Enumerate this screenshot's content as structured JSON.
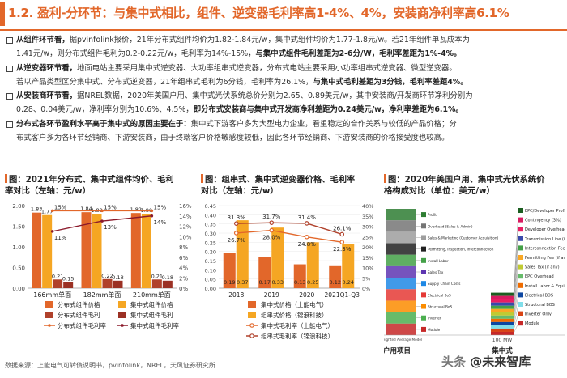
{
  "header": {
    "title": "1.2. 盈利-分环节：与集中式相比，组件、逆变器毛利率高1-4%、4%，安装商净利率高6.1%"
  },
  "bullets": [
    {
      "lead": "从组件环节看，",
      "lines": [
        "据pvinfolink报价，21年分布式组件均价为1.82-1.84元/w，集中式组件均价为1.77-1.8元/w。若21年组件单瓦成本为",
        "1.41元/w，则分布式组件毛利为0.2-0.22元/w，毛利率为14%-15%，"
      ],
      "highlight": "与集中式组件毛利差距为2-6分/W，毛利率差距为1%-4%。"
    },
    {
      "lead": "从逆变器环节看，",
      "lines": [
        "地面电站主要采用集中式逆变器、大功率组串式逆变器，分布式电站主要采用小功率组串式逆变器、微型逆变器。",
        "若以产品类型区分集中式、分布式逆变器，21年组串式毛利为6分钱，毛利率为26.1%，"
      ],
      "highlight": "与集中式毛利差距为3分钱，毛利率差距4%。"
    },
    {
      "lead": "从安装商环节看，",
      "lines": [
        "据NREL数据，2020年美国户用、集中式光伏系统总价分别为2.65、0.89美元/w，其中安装商/开发商环节净利分别为",
        "0.28、0.04美元/w，净利率分别为10.6%、4.5%，"
      ],
      "highlight": "即分布式安装商与集中式开发商净利差距为0.24美元/w，净利率差距为6.1%。"
    },
    {
      "lead": "分布式各环节盈利水平高于集中式的原因主要在于：",
      "lines": [
        "集中式下游客户多为大型电力企业，看重稳定的合作关系与较低的产品价格；分",
        "布式客户多为各环节经销商、下游安装商，由于终端客户价格敏感度较低，因此各环节经销商、下游安装商的价格接受度也较高。"
      ],
      "highlight": ""
    }
  ],
  "chart1": {
    "title_line1": "图：2021年分布式、集中式组件均价、毛利",
    "title_line2": "率对比（左轴：元/w）",
    "chart_data": {
      "type": "bar",
      "categories": [
        "166mm单面",
        "182mm单面",
        "210mm单面"
      ],
      "series": [
        {
          "name": "分布式组件价格",
          "values": [
            1.83,
            1.84,
            1.82
          ],
          "color": "#e2672a"
        },
        {
          "name": "集中式组件价格",
          "values": [
            1.77,
            1.8,
            1.8
          ],
          "color": "#f5a623"
        },
        {
          "name": "分布式组件毛利",
          "values": [
            0.21,
            0.22,
            0.21
          ],
          "color": "#b0412b"
        },
        {
          "name": "集中式组件毛利",
          "values": [
            0.15,
            0.18,
            0.18
          ],
          "color": "#9b3124"
        },
        {
          "name": "分布式组件毛利率",
          "values": [
            15,
            15,
            15
          ],
          "unit": "%",
          "axis": "right",
          "style": "line",
          "color": "#e2672a"
        },
        {
          "name": "集中式组件毛利率",
          "values": [
            11,
            13,
            14
          ],
          "unit": "%",
          "axis": "right",
          "style": "line",
          "color": "#8b1a2b"
        }
      ],
      "y_left": {
        "min": 0,
        "max": 2.0,
        "ticks": [
          "0.00",
          "0.50",
          "1.00",
          "1.50",
          "2.00"
        ]
      },
      "y_right": {
        "min": 0,
        "max": 16,
        "ticks": [
          "0%",
          "2%",
          "4%",
          "6%",
          "8%",
          "10%",
          "12%",
          "14%",
          "16%"
        ]
      },
      "bar_labels": [
        [
          "1.83",
          "1.77",
          "0.21",
          "0.15"
        ],
        [
          "1.84",
          "1.80",
          "0.22",
          "0.18"
        ],
        [
          "1.82",
          "1.80",
          "0.21",
          "0.18"
        ]
      ],
      "line_labels": {
        "分布式组件毛利率": [
          "15%",
          "15%",
          "15%"
        ],
        "集中式组件毛利率": [
          "11%",
          "13%",
          "14%"
        ]
      },
      "legend_placement": "bottom"
    }
  },
  "chart2": {
    "title_line1": "图：组串式、集中式逆变器价格、毛利率",
    "title_line2": "对比（左轴：元/w）",
    "chart_data": {
      "type": "bar",
      "categories": [
        "2018",
        "2019",
        "2020",
        "2021Q1-Q3"
      ],
      "series": [
        {
          "name": "集中式价格（上能电气）",
          "values": [
            0.19,
            0.17,
            0.13,
            0.12
          ],
          "color": "#e2672a"
        },
        {
          "name": "组串式价格（锦浪科技）",
          "values": [
            0.37,
            0.33,
            0.25,
            0.24
          ],
          "color": "#f5a623"
        },
        {
          "name": "集中式毛利率（上能电气）",
          "values": [
            26.7,
            28.0,
            24.8,
            22.3
          ],
          "unit": "%",
          "axis": "right",
          "style": "line",
          "color": "#e2672a"
        },
        {
          "name": "组串式毛利率（锦浪科技）",
          "values": [
            31.3,
            31.7,
            31.4,
            26.1
          ],
          "unit": "%",
          "axis": "right",
          "style": "line",
          "color": "#b0412b"
        }
      ],
      "y_left": {
        "min": 0,
        "max": 0.45,
        "ticks": [
          "0.00",
          "0.05",
          "0.10",
          "0.15",
          "0.20",
          "0.25",
          "0.30",
          "0.35",
          "0.40",
          "0.45"
        ]
      },
      "y_right": {
        "min": 0,
        "max": 40,
        "ticks": [
          "0%",
          "5%",
          "10%",
          "15%",
          "20%",
          "25%",
          "30%",
          "35%",
          "40%"
        ]
      },
      "bar_labels": [
        [
          "0.19",
          "0.37"
        ],
        [
          "0.17",
          "0.33"
        ],
        [
          "0.13",
          "0.25"
        ],
        [
          "0.12",
          "0.24"
        ]
      ],
      "line_labels": {
        "集中式毛利率（上能电气）": [
          "26.7%",
          "28.0%",
          "24.8%",
          "22.3%"
        ],
        "组串式毛利率（锦浪科技）": [
          "31.3%",
          "31.7%",
          "31.4%",
          "26.1%"
        ]
      },
      "legend_placement": "bottom"
    }
  },
  "chart3": {
    "title_line1": "图：2020年美国户用、集中式光伏系统价",
    "title_line2": "格构成对比（单位：美元/w）",
    "chart_data": {
      "type": "bar",
      "stacked": true,
      "categories": [
        "户用项目",
        "集中式"
      ],
      "x_sublabels": [
        "Weighted Average Model",
        "100 MW"
      ],
      "left_legend": [
        "Profit",
        "Overhead (Sales & Admin)",
        "Sales & Marketing (Customer Acquisition)",
        "Permitting, Inspection, Interconnection",
        "Install Labor",
        "Sales Tax",
        "Supply Chain Costs",
        "Electrical BoS",
        "Structural BoS",
        "Inverter",
        "Module"
      ],
      "right_legend": [
        "EPC/Developer Profit",
        "Contingency (3%)",
        "Developer Overhead",
        "Transmission Line (if any)",
        "Interconnection Fee",
        "Permitting Fee (if any)",
        "Sales Tax (if any)",
        "EPC Overhead",
        "Install Labor & Equipment",
        "Electrical BOS",
        "Structural BOS",
        "Inverter Only",
        "Module"
      ],
      "residential_total": 2.65,
      "utility_total": 0.89,
      "legend_placement": "sides"
    }
  },
  "footer": {
    "source": "数据来源：上能电气可转债说明书，pvinfolink，NREL，天风证券研究所"
  },
  "watermark": {
    "text": "头条 @未来智库",
    "prefix": "头条 ",
    "handle": "@未来智库"
  }
}
